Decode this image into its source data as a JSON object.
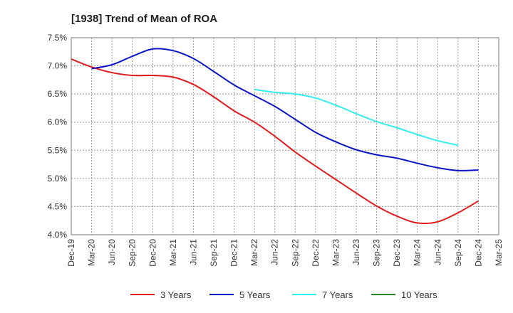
{
  "chart_data": {
    "type": "line",
    "title": "[1938]  Trend of Mean of ROA",
    "xlabel": "",
    "ylabel": "",
    "ylim": [
      4.0,
      7.5
    ],
    "y_ticks": [
      7.5,
      7.0,
      6.5,
      6.0,
      5.5,
      5.0,
      4.5,
      4.0
    ],
    "y_tick_labels": [
      "7.5%",
      "7.0%",
      "6.5%",
      "6.0%",
      "5.5%",
      "5.0%",
      "4.5%",
      "4.0%"
    ],
    "x_tick_labels": [
      "Dec-19",
      "Mar-20",
      "Jun-20",
      "Sep-20",
      "Dec-20",
      "Mar-21",
      "Jun-21",
      "Sep-21",
      "Dec-21",
      "Mar-22",
      "Jun-22",
      "Sep-22",
      "Dec-22",
      "Mar-23",
      "Jun-23",
      "Sep-23",
      "Dec-23",
      "Mar-24",
      "Jun-24",
      "Sep-24",
      "Dec-24",
      "Mar-25"
    ],
    "grid": true,
    "legend_position": "bottom",
    "series": [
      {
        "name": "3 Years",
        "color": "#e31a1c",
        "start_index": 0,
        "values": [
          7.12,
          6.98,
          6.88,
          6.83,
          6.83,
          6.8,
          6.67,
          6.45,
          6.2,
          6.0,
          5.75,
          5.47,
          5.22,
          4.98,
          4.74,
          4.51,
          4.33,
          4.21,
          4.23,
          4.39,
          4.6
        ]
      },
      {
        "name": "5 Years",
        "color": "#0a14c8",
        "start_index": 1,
        "values": [
          6.95,
          7.02,
          7.17,
          7.3,
          7.27,
          7.13,
          6.9,
          6.66,
          6.47,
          6.28,
          6.05,
          5.82,
          5.65,
          5.51,
          5.42,
          5.36,
          5.27,
          5.19,
          5.14,
          5.15
        ]
      },
      {
        "name": "7 Years",
        "color": "#33eeee",
        "start_index": 9,
        "values": [
          6.58,
          6.53,
          6.5,
          6.43,
          6.3,
          6.15,
          6.01,
          5.9,
          5.78,
          5.67,
          5.59
        ]
      },
      {
        "name": "10 Years",
        "color": "#2a8a2a",
        "start_index": 0,
        "values": []
      }
    ]
  }
}
